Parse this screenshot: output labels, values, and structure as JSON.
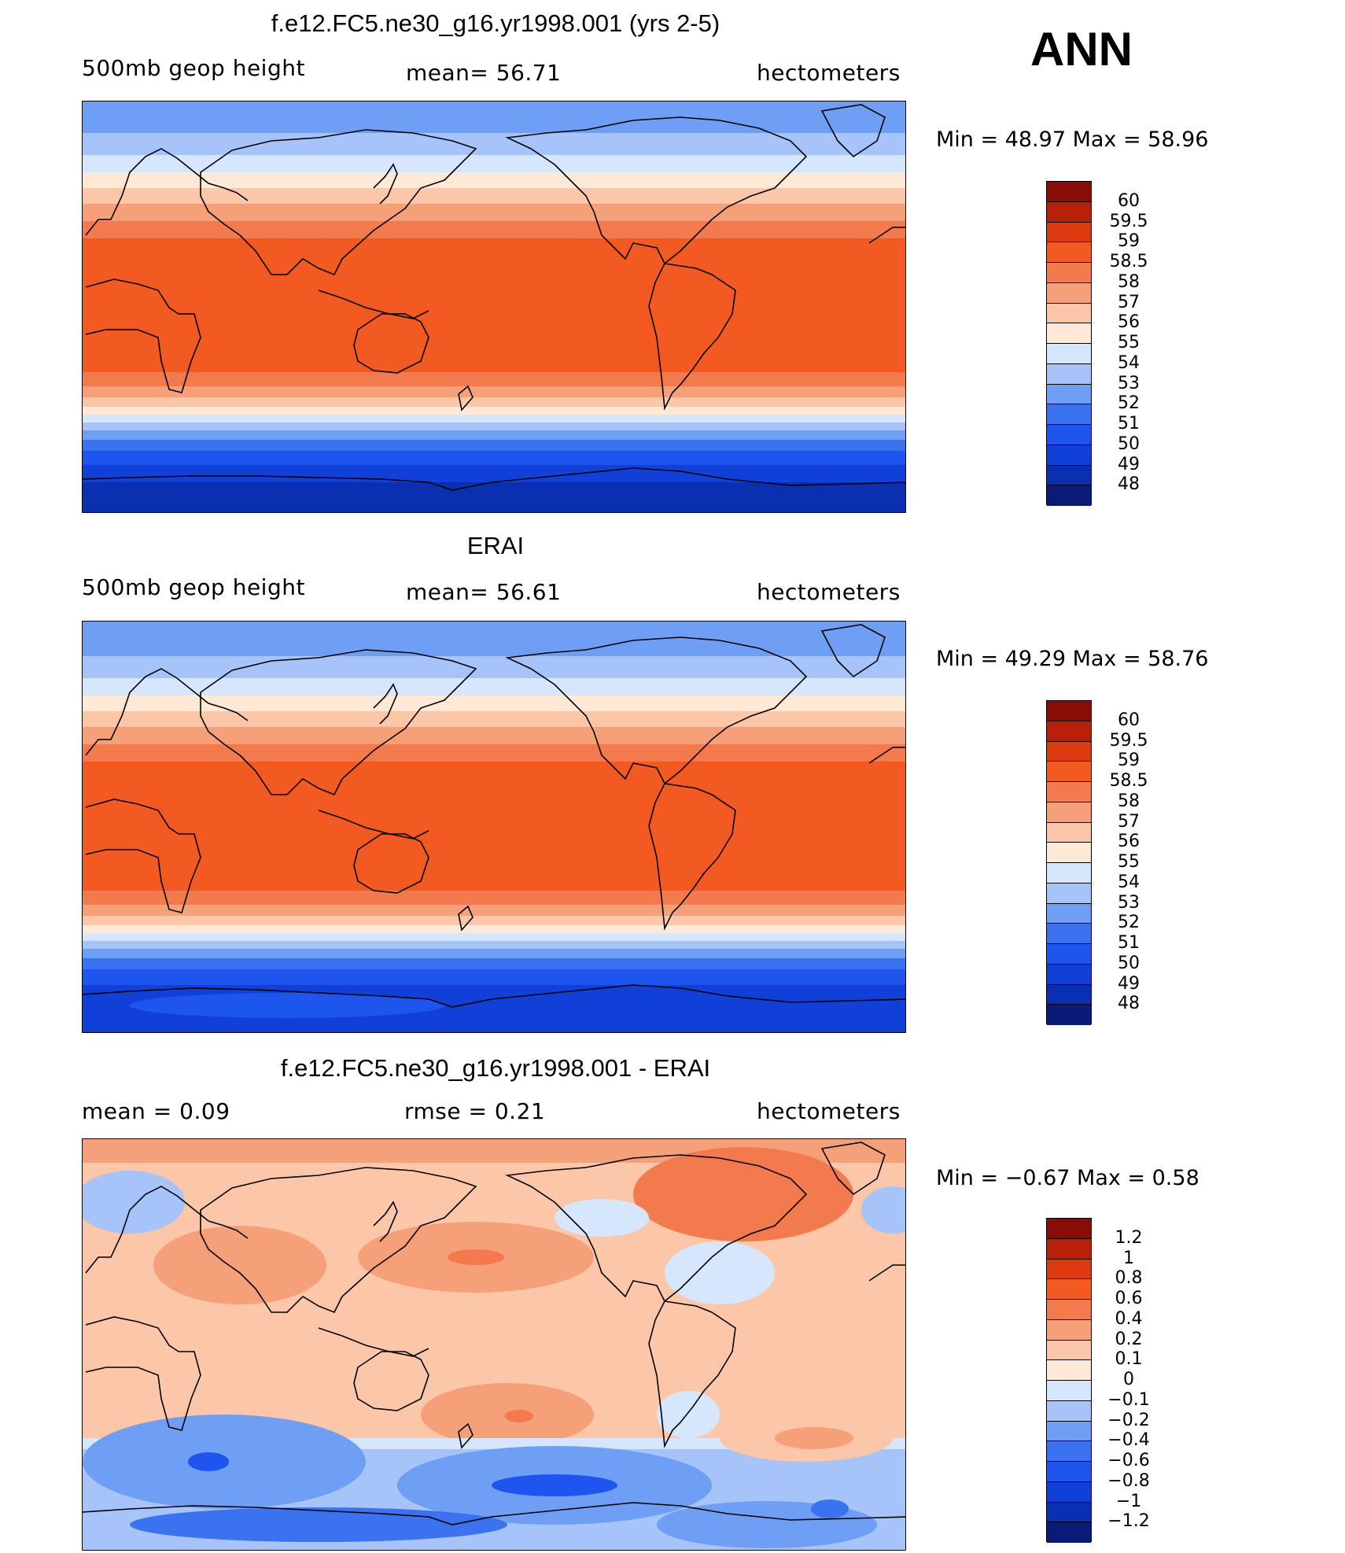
{
  "season": "ANN",
  "colors": {
    "abs": [
      "#0a1a78",
      "#0a2fb0",
      "#1040d8",
      "#1d55ee",
      "#3a72f0",
      "#6e9ff5",
      "#a6c4fa",
      "#d6e6fc",
      "#fde9d6",
      "#fbc7a8",
      "#f6a07a",
      "#f27a4c",
      "#f25a22",
      "#dd3a10",
      "#b82108",
      "#8a0c06"
    ],
    "diff": [
      "#0a1a78",
      "#0a2fb0",
      "#1040d8",
      "#1d55ee",
      "#3a72f0",
      "#6e9ff5",
      "#a6c4fa",
      "#d6e6fc",
      "#fde9d6",
      "#fbc7a8",
      "#f6a07a",
      "#f27a4c",
      "#f25a22",
      "#dd3a10",
      "#b82108",
      "#8a0c06"
    ]
  },
  "panels": [
    {
      "title": "f.e12.FC5.ne30_g16.yr1998.001 (yrs 2-5)",
      "left_label": "500mb  geop  height",
      "mid_label": "mean=   56.71",
      "units": "hectometers",
      "min_max": "Min  =    48.97  Max  =    58.96",
      "levels": [
        "60",
        "59.5",
        "59",
        "58.5",
        "58",
        "57",
        "56",
        "55",
        "54",
        "53",
        "52",
        "51",
        "50",
        "49",
        "48"
      ]
    },
    {
      "title": "ERAI",
      "left_label": "500mb  geop  height",
      "mid_label": "mean=   56.61",
      "units": "hectometers",
      "min_max": "Min  =    49.29  Max  =    58.76",
      "levels": [
        "60",
        "59.5",
        "59",
        "58.5",
        "58",
        "57",
        "56",
        "55",
        "54",
        "53",
        "52",
        "51",
        "50",
        "49",
        "48"
      ]
    },
    {
      "title": "f.e12.FC5.ne30_g16.yr1998.001 - ERAI",
      "left_label": "mean  =      0.09",
      "mid_label": "rmse  =      0.21",
      "units": "hectometers",
      "min_max": "Min  =    −0.67  Max  =       0.58",
      "levels": [
        "1.2",
        "1",
        "0.8",
        "0.6",
        "0.4",
        "0.2",
        "0.1",
        "0",
        "−0.1",
        "−0.2",
        "−0.4",
        "−0.6",
        "−0.8",
        "−1",
        "−1.2"
      ]
    }
  ]
}
